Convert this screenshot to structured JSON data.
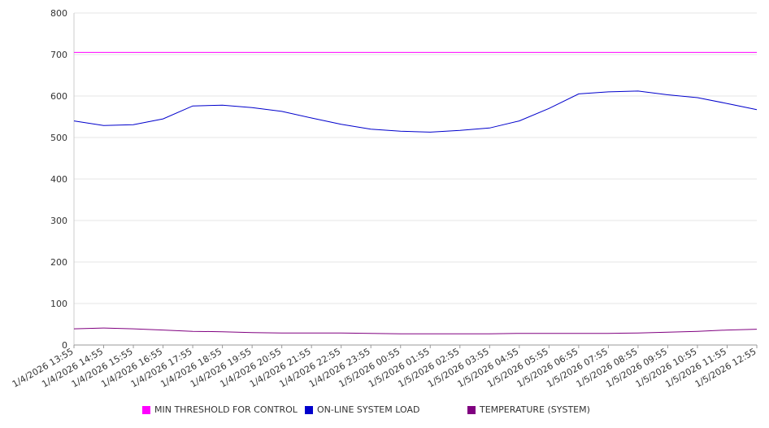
{
  "chart_data": {
    "type": "line",
    "title": "",
    "xlabel": "",
    "ylabel": "",
    "ylim": [
      0,
      800
    ],
    "yticks": [
      "0",
      "100",
      "200",
      "300",
      "400",
      "500",
      "600",
      "700",
      "800"
    ],
    "grid": "horizontal",
    "legend_position": "bottom",
    "categories": [
      "1/4/2026 13:55",
      "1/4/2026 14:55",
      "1/4/2026 15:55",
      "1/4/2026 16:55",
      "1/4/2026 17:55",
      "1/4/2026 18:55",
      "1/4/2026 19:55",
      "1/4/2026 20:55",
      "1/4/2026 21:55",
      "1/4/2026 22:55",
      "1/4/2026 23:55",
      "1/5/2026 00:55",
      "1/5/2026 01:55",
      "1/5/2026 02:55",
      "1/5/2026 03:55",
      "1/5/2026 04:55",
      "1/5/2026 05:55",
      "1/5/2026 06:55",
      "1/5/2026 07:55",
      "1/5/2026 08:55",
      "1/5/2026 09:55",
      "1/5/2026 10:55",
      "1/5/2026 11:55",
      "1/5/2026 12:55"
    ],
    "series": [
      {
        "name": "MIN THRESHOLD FOR CONTROL",
        "color": "#FF00FF",
        "values": [
          705,
          705,
          705,
          705,
          705,
          705,
          705,
          705,
          705,
          705,
          705,
          705,
          705,
          705,
          705,
          705,
          705,
          705,
          705,
          705,
          705,
          705,
          705,
          705
        ]
      },
      {
        "name": "ON-LINE SYSTEM LOAD",
        "color": "#0000CC",
        "values": [
          540,
          529,
          531,
          545,
          576,
          578,
          572,
          563,
          547,
          532,
          520,
          515,
          513,
          517,
          523,
          540,
          570,
          605,
          610,
          612,
          603,
          596,
          582,
          567
        ]
      },
      {
        "name": "TEMPERATURE (SYSTEM)",
        "color": "#800080",
        "values": [
          39,
          41,
          39,
          36,
          33,
          32,
          30,
          29,
          29,
          29,
          28,
          27,
          27,
          27,
          27,
          28,
          28,
          28,
          28,
          29,
          31,
          33,
          36,
          38
        ]
      }
    ]
  },
  "legend": {
    "items": [
      {
        "label": "MIN THRESHOLD FOR CONTROL",
        "color": "#FF00FF"
      },
      {
        "label": "ON-LINE SYSTEM LOAD",
        "color": "#0000CC"
      },
      {
        "label": "TEMPERATURE (SYSTEM)",
        "color": "#800080"
      }
    ]
  }
}
